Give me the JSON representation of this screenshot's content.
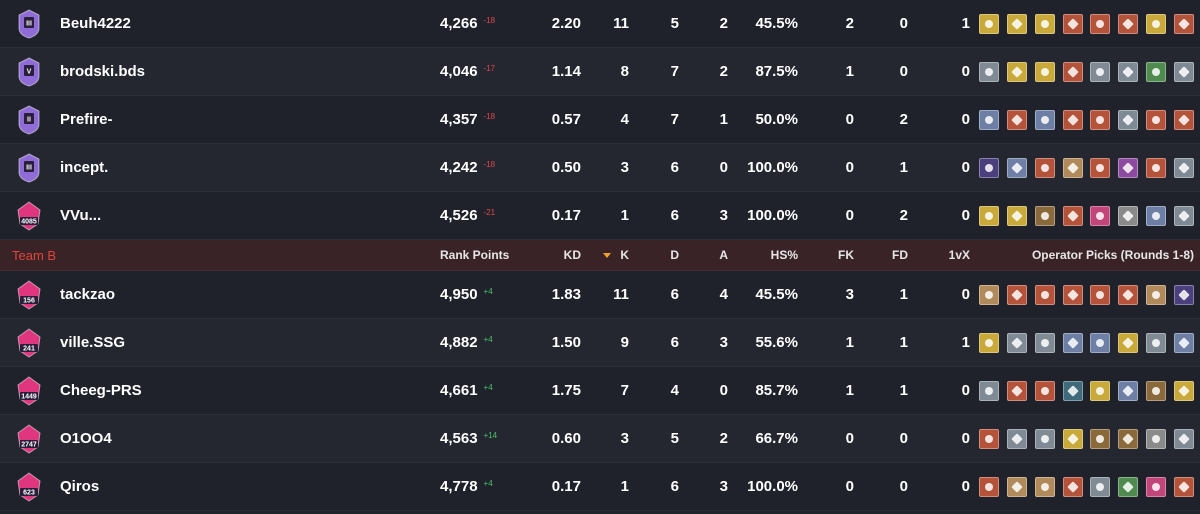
{
  "colors": {
    "accent_team_label": "#e0453a",
    "negative_delta": "#e2474c",
    "positive_delta": "#49c46b",
    "header_bg": "#3a2326",
    "champion_badge": "#8f6cd6",
    "diamond_badge": "#e0357f"
  },
  "team_a": [
    {
      "badge": "champion-icon-iii",
      "rank_label": "III",
      "name": "Beuh4222",
      "rp": "4,266",
      "delta": "-18",
      "kd": "2.20",
      "k": "11",
      "d": "5",
      "a": "2",
      "hs": "45.5%",
      "fk": "2",
      "fd": "0",
      "vx": "1"
    },
    {
      "badge": "champion-icon-v",
      "rank_label": "V",
      "name": "brodski.bds",
      "rp": "4,046",
      "delta": "-17",
      "kd": "1.14",
      "k": "8",
      "d": "7",
      "a": "2",
      "hs": "87.5%",
      "fk": "1",
      "fd": "0",
      "vx": "0"
    },
    {
      "badge": "champion-icon-ii",
      "rank_label": "II",
      "name": "Prefire-",
      "rp": "4,357",
      "delta": "-18",
      "kd": "0.57",
      "k": "4",
      "d": "7",
      "a": "1",
      "hs": "50.0%",
      "fk": "0",
      "fd": "2",
      "vx": "0"
    },
    {
      "badge": "champion-icon-iii",
      "rank_label": "III",
      "name": "incept.",
      "rp": "4,242",
      "delta": "-18",
      "kd": "0.50",
      "k": "3",
      "d": "6",
      "a": "0",
      "hs": "100.0%",
      "fk": "0",
      "fd": "1",
      "vx": "0"
    },
    {
      "badge": "champion-ranked-icon",
      "rank_label": "4085",
      "name": "VVu...",
      "rp": "4,526",
      "delta": "-21",
      "kd": "0.17",
      "k": "1",
      "d": "6",
      "a": "3",
      "hs": "100.0%",
      "fk": "0",
      "fd": "2",
      "vx": "0"
    }
  ],
  "team_b_header": {
    "team": "Team B",
    "rank_points": "Rank Points",
    "kd": "KD",
    "k": "K",
    "d": "D",
    "a": "A",
    "hs": "HS%",
    "fk": "FK",
    "fd": "FD",
    "vx": "1vX",
    "operators": "Operator Picks (Rounds 1-8)"
  },
  "team_b": [
    {
      "badge": "champion-ranked-icon",
      "rank_label": "156",
      "name": "tackzao",
      "rp": "4,950",
      "delta": "+4",
      "kd": "1.83",
      "k": "11",
      "d": "6",
      "a": "4",
      "hs": "45.5%",
      "fk": "3",
      "fd": "1",
      "vx": "0"
    },
    {
      "badge": "champion-ranked-icon",
      "rank_label": "241",
      "name": "ville.SSG",
      "rp": "4,882",
      "delta": "+4",
      "kd": "1.50",
      "k": "9",
      "d": "6",
      "a": "3",
      "hs": "55.6%",
      "fk": "1",
      "fd": "1",
      "vx": "1"
    },
    {
      "badge": "champion-ranked-icon",
      "rank_label": "1449",
      "name": "Cheeg-PRS",
      "rp": "4,661",
      "delta": "+4",
      "kd": "1.75",
      "k": "7",
      "d": "4",
      "a": "0",
      "hs": "85.7%",
      "fk": "1",
      "fd": "1",
      "vx": "0"
    },
    {
      "badge": "champion-ranked-icon",
      "rank_label": "2747",
      "name": "O1OO4",
      "rp": "4,563",
      "delta": "+14",
      "kd": "0.60",
      "k": "3",
      "d": "5",
      "a": "2",
      "hs": "66.7%",
      "fk": "0",
      "fd": "0",
      "vx": "0"
    },
    {
      "badge": "champion-ranked-icon",
      "rank_label": "623",
      "name": "Qiros",
      "rp": "4,778",
      "delta": "+4",
      "kd": "0.17",
      "k": "1",
      "d": "6",
      "a": "3",
      "hs": "100.0%",
      "fk": "0",
      "fd": "0",
      "vx": "0"
    }
  ],
  "operator_colors": {
    "team_a": [
      [
        "#c9a93a",
        "#c9a93a",
        "#c9a93a",
        "#b5523a",
        "#b5523a",
        "#b5523a",
        "#c9a93a",
        "#b5523a"
      ],
      [
        "#7f8a95",
        "#c9a93a",
        "#c9a93a",
        "#b5523a",
        "#7f8a95",
        "#7f8a95",
        "#4f8a4f",
        "#7f8a95"
      ],
      [
        "#6e7fa6",
        "#b5523a",
        "#6e7fa6",
        "#b5523a",
        "#b5523a",
        "#7f8a95",
        "#b5523a",
        "#b5523a"
      ],
      [
        "#4b3f7d",
        "#6e7fa6",
        "#b5523a",
        "#b08a5a",
        "#b5523a",
        "#8c4aa0",
        "#b5523a",
        "#7f8a95"
      ],
      [
        "#c9a93a",
        "#c9a93a",
        "#8a6a3a",
        "#b5523a",
        "#c2457a",
        "#8a8a8a",
        "#6e7fa6",
        "#7f8a95"
      ]
    ],
    "team_b": [
      [
        "#b08a5a",
        "#b5523a",
        "#b5523a",
        "#b5523a",
        "#b5523a",
        "#b5523a",
        "#b08a5a",
        "#4b3f7d"
      ],
      [
        "#c9a93a",
        "#7f8a95",
        "#7f8a95",
        "#6e7fa6",
        "#6e7fa6",
        "#c9a93a",
        "#7f8a95",
        "#6e7fa6"
      ],
      [
        "#7f8a95",
        "#b5523a",
        "#b5523a",
        "#3f6a7a",
        "#c9a93a",
        "#6e7fa6",
        "#8a6a3a",
        "#c9a93a"
      ],
      [
        "#b5523a",
        "#7f8a95",
        "#7f8a95",
        "#c9a93a",
        "#8a6a3a",
        "#8a6a3a",
        "#8a8a8a",
        "#7f8a95"
      ],
      [
        "#b5523a",
        "#b08a5a",
        "#b08a5a",
        "#b5523a",
        "#7f8a95",
        "#4f8a4f",
        "#c2457a",
        "#b5523a"
      ]
    ]
  }
}
